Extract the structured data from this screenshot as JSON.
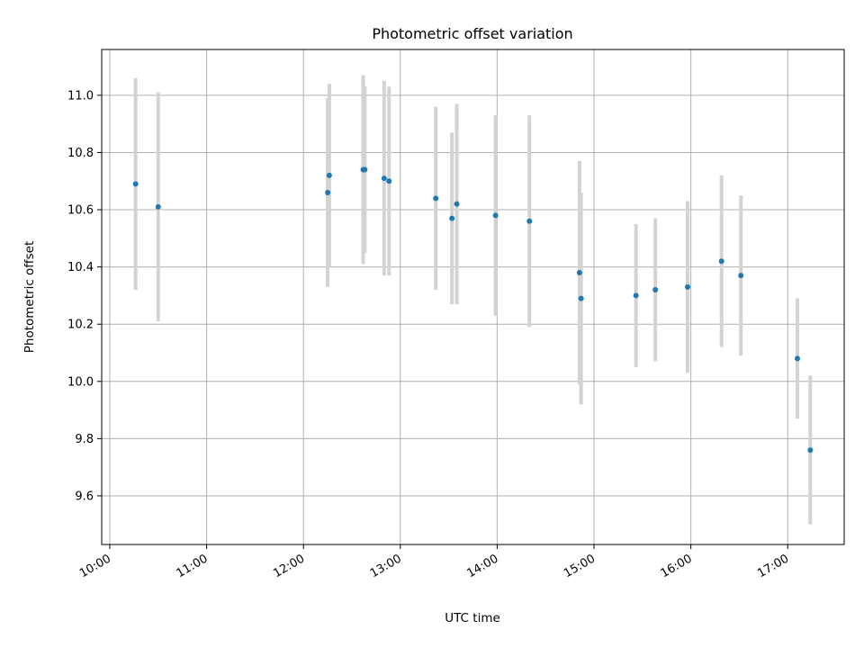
{
  "chart_data": {
    "type": "scatter",
    "title": "Photometric offset variation",
    "xlabel": "UTC time",
    "ylabel": "Photometric offset",
    "xlim": [
      "09:55",
      "17:35"
    ],
    "ylim": [
      9.43,
      11.16
    ],
    "grid": true,
    "x_ticks": [
      "10:00",
      "11:00",
      "12:00",
      "13:00",
      "14:00",
      "15:00",
      "16:00",
      "17:00"
    ],
    "y_ticks": [
      9.6,
      9.8,
      10.0,
      10.2,
      10.4,
      10.6,
      10.8,
      11.0
    ],
    "y_tick_labels": [
      "9.6",
      "9.8",
      "10.0",
      "10.2",
      "10.4",
      "10.6",
      "10.8",
      "11.0"
    ],
    "marker_color": "#1f77b4",
    "errorbar_color": "#d3d3d3",
    "series": [
      {
        "points": [
          {
            "x": "10:16",
            "y": 10.69,
            "err": 0.37
          },
          {
            "x": "10:30",
            "y": 10.61,
            "err": 0.4
          },
          {
            "x": "12:15",
            "y": 10.66,
            "err": 0.33
          },
          {
            "x": "12:16",
            "y": 10.72,
            "err": 0.32
          },
          {
            "x": "12:37",
            "y": 10.74,
            "err": 0.33
          },
          {
            "x": "12:38",
            "y": 10.74,
            "err": 0.29
          },
          {
            "x": "12:50",
            "y": 10.71,
            "err": 0.34
          },
          {
            "x": "12:53",
            "y": 10.7,
            "err": 0.33
          },
          {
            "x": "13:22",
            "y": 10.64,
            "err": 0.32
          },
          {
            "x": "13:32",
            "y": 10.57,
            "err": 0.3
          },
          {
            "x": "13:35",
            "y": 10.62,
            "err": 0.35
          },
          {
            "x": "13:59",
            "y": 10.58,
            "err": 0.35
          },
          {
            "x": "14:20",
            "y": 10.56,
            "err": 0.37
          },
          {
            "x": "14:51",
            "y": 10.38,
            "err": 0.39
          },
          {
            "x": "14:52",
            "y": 10.29,
            "err": 0.37
          },
          {
            "x": "15:26",
            "y": 10.3,
            "err": 0.25
          },
          {
            "x": "15:38",
            "y": 10.32,
            "err": 0.25
          },
          {
            "x": "15:58",
            "y": 10.33,
            "err": 0.3
          },
          {
            "x": "16:19",
            "y": 10.42,
            "err": 0.3
          },
          {
            "x": "16:31",
            "y": 10.37,
            "err": 0.28
          },
          {
            "x": "17:06",
            "y": 10.08,
            "err": 0.21
          },
          {
            "x": "17:14",
            "y": 9.76,
            "err": 0.26
          }
        ]
      }
    ]
  }
}
